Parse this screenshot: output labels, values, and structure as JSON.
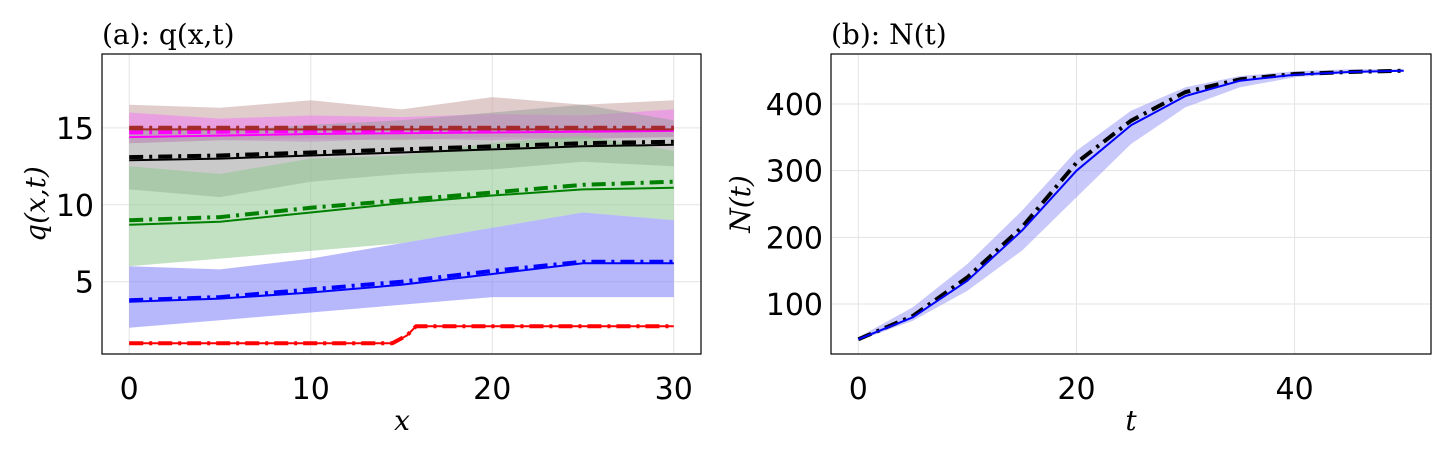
{
  "chart_data": [
    {
      "type": "line",
      "title": "(a): q(x,t)",
      "xlabel": "x",
      "ylabel": "q(x,t)",
      "xlim": [
        -1.5,
        31.5
      ],
      "ylim": [
        0.3,
        19.8
      ],
      "xticks": [
        0,
        10,
        20,
        30
      ],
      "yticks": [
        5,
        10,
        15
      ],
      "xtick_labels": [
        "0",
        "10",
        "20",
        "30"
      ],
      "ytick_labels": [
        "5",
        "10",
        "15"
      ],
      "grid": true,
      "bands": [
        {
          "color": "#c8a2a2",
          "x": [
            0,
            5,
            10,
            15,
            20,
            25,
            30
          ],
          "lower": [
            14.0,
            14.2,
            14.3,
            14.2,
            14.4,
            14.3,
            14.4
          ],
          "upper": [
            16.5,
            16.3,
            16.8,
            16.2,
            17.0,
            16.5,
            16.8
          ]
        },
        {
          "color": "#f07cf0",
          "x": [
            0,
            5,
            10,
            15,
            20,
            25,
            30
          ],
          "lower": [
            14.0,
            14.2,
            14.1,
            14.3,
            14.2,
            14.3,
            14.4
          ],
          "upper": [
            16.0,
            15.6,
            15.8,
            15.7,
            15.9,
            15.8,
            16.2
          ]
        },
        {
          "color": "#9e9e9e",
          "x": [
            0,
            5,
            10,
            15,
            20,
            25,
            30
          ],
          "lower": [
            11.0,
            10.5,
            11.5,
            12.0,
            12.3,
            12.8,
            12.5
          ],
          "upper": [
            15.0,
            14.8,
            15.2,
            15.5,
            16.0,
            16.5,
            15.5
          ]
        },
        {
          "color": "#8fc78f",
          "x": [
            0,
            5,
            10,
            15,
            20,
            25,
            30
          ],
          "lower": [
            6.0,
            6.5,
            7.0,
            7.5,
            8.5,
            9.5,
            9.0
          ],
          "upper": [
            12.5,
            12.0,
            13.0,
            13.2,
            14.0,
            14.5,
            13.5
          ]
        },
        {
          "color": "#7c7cf7",
          "x": [
            0,
            5,
            10,
            15,
            20,
            25,
            30
          ],
          "lower": [
            2.0,
            2.5,
            3.0,
            3.5,
            4.0,
            4.0,
            4.0
          ],
          "upper": [
            6.0,
            5.8,
            6.5,
            7.5,
            8.5,
            9.5,
            9.0
          ]
        }
      ],
      "series": [
        {
          "color": "#ff0000",
          "style": "dashdot",
          "x": [
            0,
            10,
            14.5,
            15.3,
            15.8,
            20,
            30
          ],
          "values": [
            1.0,
            1.0,
            1.0,
            1.5,
            2.1,
            2.1,
            2.1
          ]
        },
        {
          "color": "#ff0000",
          "style": "solid",
          "x": [
            0,
            10,
            14.5,
            15.3,
            15.8,
            20,
            30
          ],
          "values": [
            1.0,
            1.0,
            1.0,
            1.5,
            2.1,
            2.1,
            2.1
          ]
        },
        {
          "color": "#0000ff",
          "style": "dashdot",
          "x": [
            0,
            5,
            10,
            15,
            20,
            25,
            30
          ],
          "values": [
            3.8,
            4.0,
            4.5,
            5.0,
            5.7,
            6.3,
            6.3
          ]
        },
        {
          "color": "#0000ff",
          "style": "solid",
          "x": [
            0,
            5,
            10,
            15,
            20,
            25,
            30
          ],
          "values": [
            3.7,
            3.9,
            4.3,
            4.8,
            5.5,
            6.2,
            6.2
          ]
        },
        {
          "color": "#008000",
          "style": "dashdot",
          "x": [
            0,
            5,
            10,
            15,
            20,
            25,
            30
          ],
          "values": [
            9.0,
            9.2,
            9.8,
            10.3,
            10.8,
            11.3,
            11.5
          ]
        },
        {
          "color": "#008000",
          "style": "solid",
          "x": [
            0,
            5,
            10,
            15,
            20,
            25,
            30
          ],
          "values": [
            8.7,
            8.9,
            9.5,
            10.1,
            10.6,
            11.0,
            11.1
          ]
        },
        {
          "color": "#000000",
          "style": "dashdot",
          "x": [
            0,
            5,
            10,
            15,
            20,
            25,
            30
          ],
          "values": [
            13.1,
            13.2,
            13.4,
            13.6,
            13.8,
            14.0,
            14.1
          ]
        },
        {
          "color": "#000000",
          "style": "solid",
          "x": [
            0,
            5,
            10,
            15,
            20,
            25,
            30
          ],
          "values": [
            12.9,
            13.0,
            13.2,
            13.4,
            13.6,
            13.8,
            13.9
          ]
        },
        {
          "color": "#ff00ff",
          "style": "dashdot",
          "x": [
            0,
            10,
            20,
            30
          ],
          "values": [
            14.7,
            14.8,
            14.9,
            15.0
          ]
        },
        {
          "color": "#ff00ff",
          "style": "solid",
          "x": [
            0,
            10,
            20,
            30
          ],
          "values": [
            14.4,
            14.6,
            14.7,
            14.8
          ]
        },
        {
          "color": "#a52a2a",
          "style": "dashdot",
          "x": [
            0,
            10,
            20,
            30
          ],
          "values": [
            15.0,
            15.0,
            15.0,
            15.0
          ]
        },
        {
          "color": "#a52a2a",
          "style": "solid",
          "x": [
            0,
            10,
            20,
            30
          ],
          "values": [
            14.9,
            14.9,
            14.9,
            14.9
          ]
        }
      ]
    },
    {
      "type": "line",
      "title": "(b): N(t)",
      "xlabel": "t",
      "ylabel": "N(t)",
      "xlim": [
        -2.5,
        52.5
      ],
      "ylim": [
        25,
        475
      ],
      "xticks": [
        0,
        20,
        40
      ],
      "yticks": [
        100,
        200,
        300,
        400
      ],
      "xtick_labels": [
        "0",
        "20",
        "40"
      ],
      "ytick_labels": [
        "100",
        "200",
        "300",
        "400"
      ],
      "grid": true,
      "bands": [
        {
          "color": "#9a9af8",
          "x": [
            0,
            5,
            10,
            15,
            20,
            25,
            30,
            35,
            40,
            45,
            50
          ],
          "lower": [
            45,
            75,
            120,
            180,
            260,
            340,
            395,
            425,
            440,
            446,
            449
          ],
          "upper": [
            50,
            95,
            160,
            240,
            330,
            390,
            425,
            442,
            449,
            452,
            452
          ]
        }
      ],
      "series": [
        {
          "color": "#000000",
          "style": "dashdot",
          "x": [
            0,
            5,
            10,
            15,
            20,
            25,
            30,
            35,
            40,
            45,
            50
          ],
          "values": [
            47,
            82,
            140,
            215,
            312,
            375,
            418,
            437,
            445,
            448,
            450
          ]
        },
        {
          "color": "#0000ff",
          "style": "solid",
          "x": [
            0,
            5,
            10,
            15,
            20,
            25,
            30,
            35,
            40,
            45,
            50
          ],
          "values": [
            47,
            80,
            135,
            210,
            300,
            368,
            412,
            435,
            444,
            448,
            450
          ]
        }
      ]
    }
  ]
}
